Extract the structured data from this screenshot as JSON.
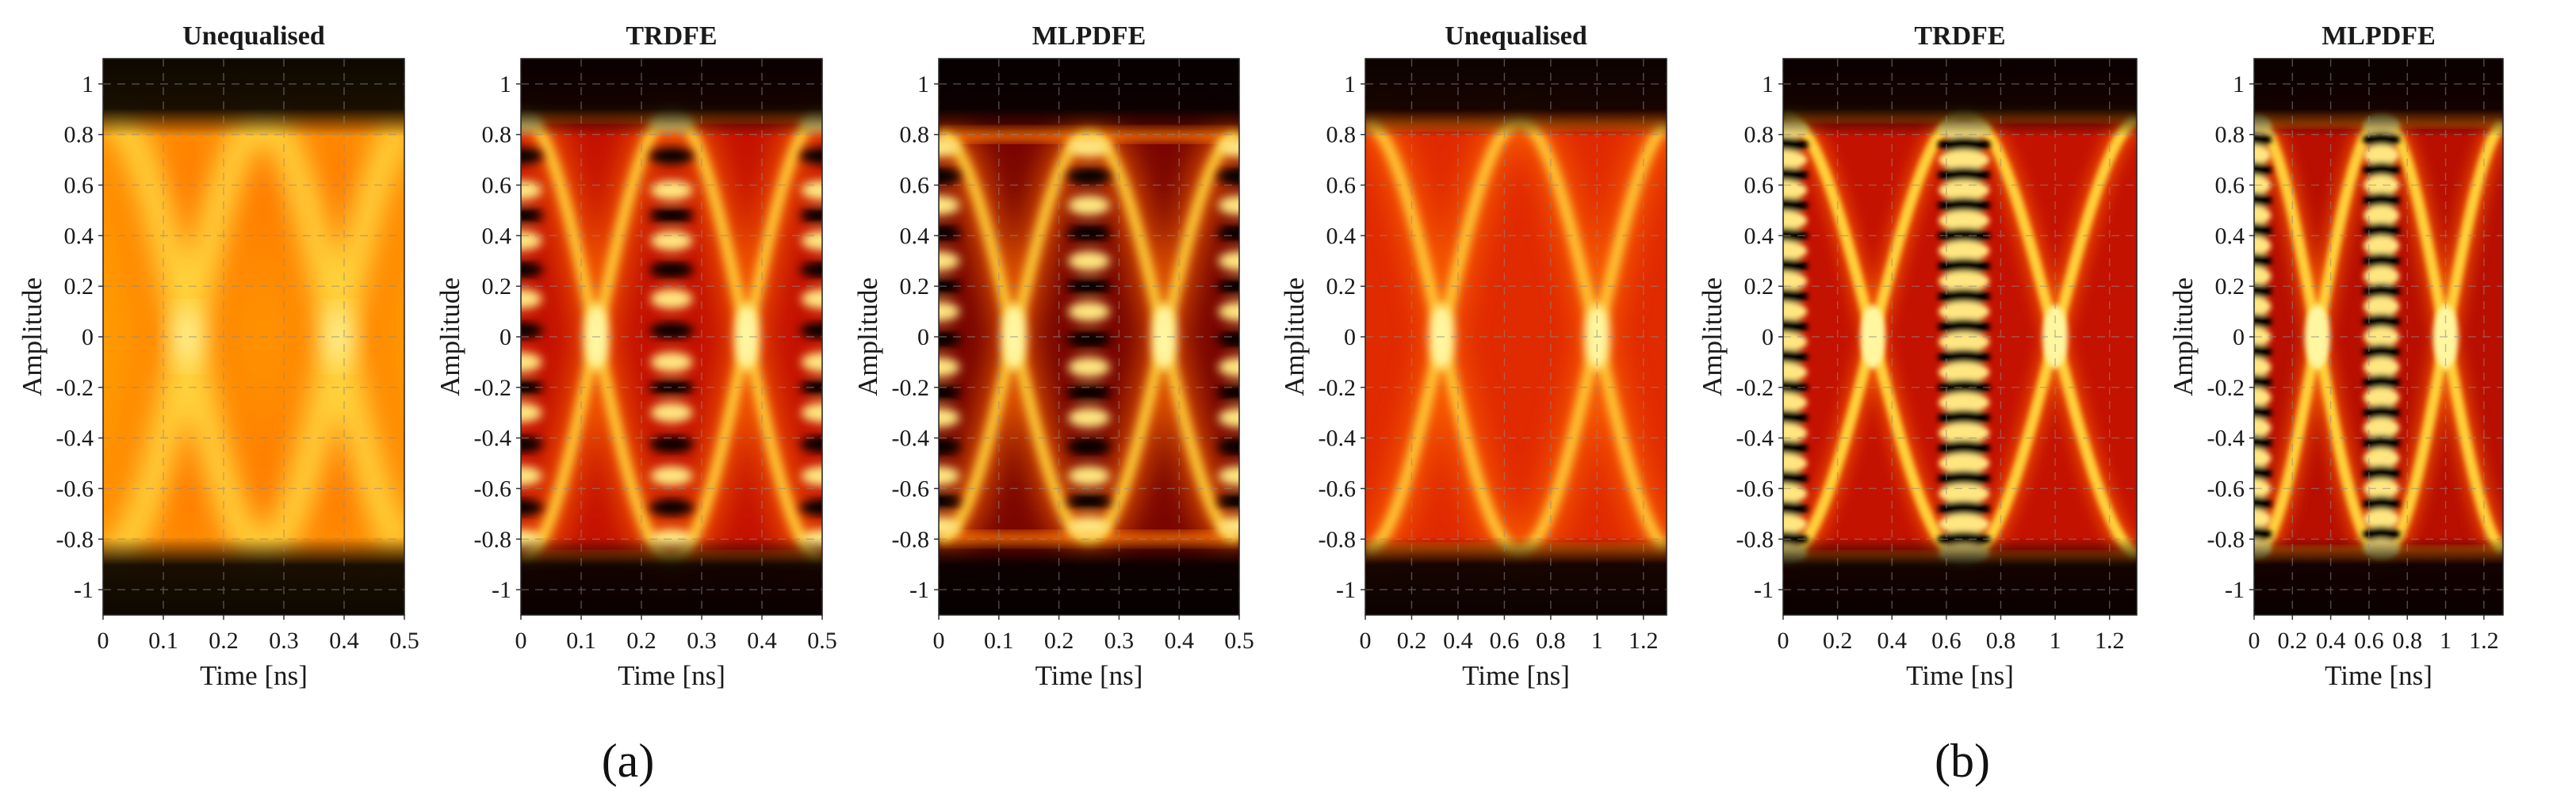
{
  "figure": {
    "groups": [
      {
        "label": "(a)"
      },
      {
        "label": "(b)"
      }
    ]
  },
  "chart_data": [
    {
      "type": "heatmap",
      "group": "(a)",
      "title": "Unequalised",
      "xlabel": "Time [ns]",
      "ylabel": "Amplitude",
      "xlim": [
        0,
        0.5
      ],
      "ylim": [
        -1.1,
        1.1
      ],
      "xticks": [
        0,
        0.1,
        0.2,
        0.3,
        0.4,
        0.5
      ],
      "xtick_labels": [
        "0",
        "0.1",
        "0.2",
        "0.3",
        "0.4",
        "0.5"
      ],
      "yticks": [
        1,
        0.8,
        0.6,
        0.4,
        0.2,
        0,
        -0.2,
        -0.4,
        -0.6,
        -0.8,
        -1
      ],
      "ytick_labels": [
        "1",
        "0.8",
        "0.6",
        "0.4",
        "0.2",
        "0",
        "-0.2",
        "-0.4",
        "-0.6",
        "-0.8",
        "-1"
      ],
      "grid": true,
      "colormap": "hot",
      "eye_crossings_ns": [
        0.14,
        0.39
      ],
      "eye_period_ns": 0.25,
      "levels": [],
      "signal_peak": 0.85,
      "blur": "wide",
      "background": "#ffa000"
    },
    {
      "type": "heatmap",
      "group": "(a)",
      "title": "TRDFE",
      "xlabel": "Time [ns]",
      "ylabel": "Amplitude",
      "xlim": [
        0,
        0.5
      ],
      "ylim": [
        -1.1,
        1.1
      ],
      "xticks": [
        0,
        0.1,
        0.2,
        0.3,
        0.4,
        0.5
      ],
      "xtick_labels": [
        "0",
        "0.1",
        "0.2",
        "0.3",
        "0.4",
        "0.5"
      ],
      "yticks": [
        1,
        0.8,
        0.6,
        0.4,
        0.2,
        0,
        -0.2,
        -0.4,
        -0.6,
        -0.8,
        -1
      ],
      "ytick_labels": [
        "1",
        "0.8",
        "0.6",
        "0.4",
        "0.2",
        "0",
        "-0.2",
        "-0.4",
        "-0.6",
        "-0.8",
        "-1"
      ],
      "grid": true,
      "colormap": "hot",
      "eye_crossings_ns": [
        0.125,
        0.375
      ],
      "eye_period_ns": 0.25,
      "levels": [
        0.85,
        0.58,
        0.38,
        0.15,
        -0.1,
        -0.3,
        -0.55,
        -0.8
      ],
      "signal_peak": 0.88,
      "blur": "medium",
      "background": "#c41200"
    },
    {
      "type": "heatmap",
      "group": "(a)",
      "title": "MLPDFE",
      "xlabel": "Time [ns]",
      "ylabel": "Amplitude",
      "xlim": [
        0,
        0.5
      ],
      "ylim": [
        -1.1,
        1.1
      ],
      "xticks": [
        0,
        0.1,
        0.2,
        0.3,
        0.4,
        0.5
      ],
      "xtick_labels": [
        "0",
        "0.1",
        "0.2",
        "0.3",
        "0.4",
        "0.5"
      ],
      "yticks": [
        1,
        0.8,
        0.6,
        0.4,
        0.2,
        0,
        -0.2,
        -0.4,
        -0.6,
        -0.8,
        -1
      ],
      "ytick_labels": [
        "1",
        "0.8",
        "0.6",
        "0.4",
        "0.2",
        "0",
        "-0.2",
        "-0.4",
        "-0.6",
        "-0.8",
        "-1"
      ],
      "grid": true,
      "colormap": "hot",
      "eye_crossings_ns": [
        0.125,
        0.375
      ],
      "eye_period_ns": 0.25,
      "levels": [
        0.75,
        0.52,
        0.3,
        0.1,
        -0.12,
        -0.32,
        -0.55,
        -0.75
      ],
      "signal_peak": 0.8,
      "blur": "medium",
      "background": "#7a0600"
    },
    {
      "type": "heatmap",
      "group": "(b)",
      "title": "Unequalised",
      "xlabel": "Time [ns]",
      "ylabel": "Amplitude",
      "xlim": [
        0,
        1.3
      ],
      "ylim": [
        -1.1,
        1.1
      ],
      "xticks": [
        0,
        0.2,
        0.4,
        0.6,
        0.8,
        1,
        1.2
      ],
      "xtick_labels": [
        "0",
        "0.2",
        "0.4",
        "0.6",
        "0.8",
        "1",
        "1.2"
      ],
      "yticks": [
        1,
        0.8,
        0.6,
        0.4,
        0.2,
        0,
        -0.2,
        -0.4,
        -0.6,
        -0.8,
        -1
      ],
      "ytick_labels": [
        "1",
        "0.8",
        "0.6",
        "0.4",
        "0.2",
        "0",
        "-0.2",
        "-0.4",
        "-0.6",
        "-0.8",
        "-1"
      ],
      "grid": true,
      "colormap": "hot",
      "eye_crossings_ns": [
        0.33,
        1.0
      ],
      "eye_period_ns": 0.67,
      "levels": [],
      "signal_peak": 0.85,
      "blur": "medium",
      "background": "#e02a00"
    },
    {
      "type": "heatmap",
      "group": "(b)",
      "title": "TRDFE",
      "xlabel": "Time [ns]",
      "ylabel": "Amplitude",
      "xlim": [
        0,
        1.3
      ],
      "ylim": [
        -1.1,
        1.1
      ],
      "xticks": [
        0,
        0.2,
        0.4,
        0.6,
        0.8,
        1,
        1.2
      ],
      "xtick_labels": [
        "0",
        "0.2",
        "0.4",
        "0.6",
        "0.8",
        "1",
        "1.2"
      ],
      "yticks": [
        1,
        0.8,
        0.6,
        0.4,
        0.2,
        0,
        -0.2,
        -0.4,
        -0.6,
        -0.8,
        -1
      ],
      "ytick_labels": [
        "1",
        "0.8",
        "0.6",
        "0.4",
        "0.2",
        "0",
        "-0.2",
        "-0.4",
        "-0.6",
        "-0.8",
        "-1"
      ],
      "grid": true,
      "colormap": "hot",
      "eye_crossings_ns": [
        0.33,
        1.0
      ],
      "eye_period_ns": 0.67,
      "levels": [
        0.82,
        0.7,
        0.58,
        0.46,
        0.34,
        0.22,
        0.1,
        -0.02,
        -0.14,
        -0.26,
        -0.38,
        -0.5,
        -0.62,
        -0.74,
        -0.86
      ],
      "signal_peak": 0.88,
      "blur": "fine",
      "background": "#c41200"
    },
    {
      "type": "heatmap",
      "group": "(b)",
      "title": "MLPDFE",
      "xlabel": "Time [ns]",
      "ylabel": "Amplitude",
      "xlim": [
        0,
        1.3
      ],
      "ylim": [
        -1.1,
        1.1
      ],
      "xticks": [
        0,
        0.2,
        0.4,
        0.6,
        0.8,
        1,
        1.2
      ],
      "xtick_labels": [
        "0",
        "0.2",
        "0.4",
        "0.6",
        "0.8",
        "1",
        "1.2"
      ],
      "yticks": [
        1,
        0.8,
        0.6,
        0.4,
        0.2,
        0,
        -0.2,
        -0.4,
        -0.6,
        -0.8,
        -1
      ],
      "ytick_labels": [
        "1",
        "0.8",
        "0.6",
        "0.4",
        "0.2",
        "0",
        "-0.2",
        "-0.4",
        "-0.6",
        "-0.8",
        "-1"
      ],
      "grid": true,
      "colormap": "hot",
      "eye_crossings_ns": [
        0.33,
        1.0
      ],
      "eye_period_ns": 0.67,
      "levels": [
        0.84,
        0.72,
        0.6,
        0.48,
        0.36,
        0.24,
        0.12,
        0,
        -0.12,
        -0.24,
        -0.36,
        -0.48,
        -0.6,
        -0.72,
        -0.84
      ],
      "signal_peak": 0.86,
      "blur": "fine",
      "background": "#b80f00"
    }
  ]
}
